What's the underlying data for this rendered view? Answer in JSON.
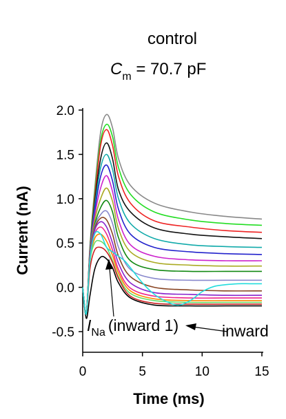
{
  "chart_data": {
    "type": "line",
    "title": "control",
    "subtitle": {
      "symbol": "C",
      "subscript": "m",
      "rest": " = 70.7 pF"
    },
    "xlabel": "Time (ms)",
    "ylabel": "Current (nA)",
    "xlim": [
      0,
      15
    ],
    "ylim": [
      -0.6,
      2.0
    ],
    "xticks": [
      0,
      5,
      10,
      15
    ],
    "yticks": [
      -0.5,
      0.0,
      0.5,
      1.0,
      1.5,
      2.0
    ],
    "xtick_labels": [
      "0",
      "5",
      "10",
      "15"
    ],
    "ytick_labels": [
      "-0.5",
      "0.0",
      "0.5",
      "1.0",
      "1.5",
      "2.0"
    ],
    "grid": false,
    "legend": "none",
    "series": [
      {
        "color": "#888888",
        "x": [
          0,
          0.3,
          0.6,
          1.0,
          1.5,
          2.0,
          2.5,
          3.0,
          4.0,
          6.0,
          9.0,
          12.0,
          15.0
        ],
        "y": [
          0,
          -0.3,
          0.45,
          1.1,
          1.75,
          1.95,
          1.8,
          1.45,
          1.15,
          0.95,
          0.85,
          0.8,
          0.77
        ]
      },
      {
        "color": "#22dd22",
        "x": [
          0,
          0.3,
          0.6,
          1.0,
          1.5,
          2.0,
          2.5,
          3.0,
          4.0,
          6.0,
          9.0,
          12.0,
          15.0
        ],
        "y": [
          0,
          -0.3,
          0.43,
          1.05,
          1.65,
          1.84,
          1.7,
          1.35,
          1.05,
          0.85,
          0.76,
          0.72,
          0.7
        ]
      },
      {
        "color": "#ee2222",
        "x": [
          0,
          0.3,
          0.6,
          1.0,
          1.5,
          2.0,
          2.5,
          3.0,
          4.0,
          6.0,
          9.0,
          12.0,
          15.0
        ],
        "y": [
          0,
          -0.3,
          0.42,
          1.0,
          1.6,
          1.78,
          1.6,
          1.25,
          0.95,
          0.75,
          0.68,
          0.64,
          0.62
        ]
      },
      {
        "color": "#111111",
        "x": [
          0,
          0.3,
          0.6,
          1.0,
          1.5,
          2.0,
          2.5,
          3.0,
          4.0,
          6.0,
          9.0,
          12.0,
          15.0
        ],
        "y": [
          0,
          -0.3,
          0.4,
          0.95,
          1.45,
          1.63,
          1.45,
          1.1,
          0.85,
          0.67,
          0.6,
          0.57,
          0.55
        ]
      },
      {
        "color": "#11aaaa",
        "x": [
          0,
          0.3,
          0.6,
          1.0,
          1.5,
          2.0,
          2.5,
          3.0,
          4.0,
          6.0,
          9.0,
          12.0,
          15.0
        ],
        "y": [
          0,
          -0.3,
          0.4,
          0.9,
          1.35,
          1.5,
          1.33,
          1.0,
          0.72,
          0.55,
          0.48,
          0.46,
          0.45
        ]
      },
      {
        "color": "#2222cc",
        "x": [
          0,
          0.3,
          0.6,
          1.0,
          1.5,
          2.0,
          2.5,
          3.0,
          4.0,
          6.0,
          9.0,
          12.0,
          15.0
        ],
        "y": [
          0,
          -0.3,
          0.38,
          0.85,
          1.25,
          1.38,
          1.2,
          0.88,
          0.6,
          0.45,
          0.4,
          0.38,
          0.37
        ]
      },
      {
        "color": "#cc22cc",
        "x": [
          0,
          0.3,
          0.6,
          1.0,
          1.5,
          2.0,
          2.5,
          3.0,
          4.0,
          6.0,
          9.0,
          12.0,
          15.0
        ],
        "y": [
          0,
          -0.3,
          0.38,
          0.8,
          1.12,
          1.26,
          1.08,
          0.76,
          0.48,
          0.35,
          0.31,
          0.3,
          0.3
        ]
      },
      {
        "color": "#aaaa22",
        "x": [
          0,
          0.3,
          0.6,
          1.0,
          1.5,
          2.0,
          2.5,
          3.0,
          4.0,
          6.0,
          9.0,
          12.0,
          15.0
        ],
        "y": [
          0,
          -0.3,
          0.37,
          0.75,
          1.0,
          1.12,
          0.97,
          0.66,
          0.4,
          0.28,
          0.25,
          0.24,
          0.24
        ]
      },
      {
        "color": "#118811",
        "x": [
          0,
          0.3,
          0.6,
          1.0,
          1.5,
          2.0,
          2.5,
          3.0,
          4.0,
          6.0,
          9.0,
          12.0,
          15.0
        ],
        "y": [
          0,
          -0.3,
          0.36,
          0.7,
          0.9,
          0.98,
          0.85,
          0.56,
          0.3,
          0.2,
          0.18,
          0.18,
          0.18
        ]
      },
      {
        "color": "#8888cc",
        "x": [
          0,
          0.3,
          0.6,
          1.0,
          1.5,
          2.0,
          2.5,
          3.0,
          4.0,
          6.0,
          9.0,
          12.0,
          15.0
        ],
        "y": [
          0,
          -0.3,
          0.35,
          0.68,
          0.82,
          0.86,
          0.72,
          0.45,
          0.2,
          0.1,
          0.08,
          0.08,
          0.08
        ]
      },
      {
        "color": "#884422",
        "x": [
          0,
          0.3,
          0.6,
          1.0,
          1.5,
          2.0,
          2.5,
          3.0,
          4.0,
          6.0,
          9.0,
          12.0,
          15.0
        ],
        "y": [
          0,
          -0.3,
          0.34,
          0.66,
          0.78,
          0.76,
          0.6,
          0.35,
          0.12,
          0.0,
          -0.03,
          -0.04,
          -0.04
        ]
      },
      {
        "color": "#8822cc",
        "x": [
          0,
          0.3,
          0.6,
          1.0,
          1.5,
          2.0,
          2.5,
          3.0,
          4.0,
          6.0,
          9.0,
          12.0,
          15.0
        ],
        "y": [
          0,
          -0.3,
          0.33,
          0.64,
          0.74,
          0.68,
          0.5,
          0.27,
          0.05,
          -0.06,
          -0.08,
          -0.09,
          -0.09
        ]
      },
      {
        "color": "#ee2288",
        "x": [
          0,
          0.3,
          0.6,
          1.0,
          1.5,
          2.0,
          2.5,
          3.0,
          4.0,
          6.0,
          9.0,
          12.0,
          15.0
        ],
        "y": [
          0,
          -0.3,
          0.32,
          0.6,
          0.68,
          0.6,
          0.42,
          0.2,
          -0.01,
          -0.1,
          -0.12,
          -0.12,
          -0.12
        ]
      },
      {
        "color": "#ff8800",
        "x": [
          0,
          0.3,
          0.6,
          1.0,
          1.5,
          2.0,
          2.5,
          3.0,
          4.0,
          6.0,
          9.0,
          12.0,
          15.0
        ],
        "y": [
          0,
          -0.3,
          0.3,
          0.55,
          0.6,
          0.52,
          0.36,
          0.16,
          -0.04,
          -0.13,
          -0.15,
          -0.15,
          -0.15
        ]
      },
      {
        "color": "#66dd66",
        "x": [
          0,
          0.3,
          0.6,
          1.0,
          1.5,
          2.0,
          2.5,
          3.0,
          4.0,
          6.0,
          9.0,
          12.0,
          15.0
        ],
        "y": [
          0,
          -0.3,
          0.28,
          0.5,
          0.52,
          0.45,
          0.3,
          0.12,
          -0.07,
          -0.15,
          -0.17,
          -0.17,
          -0.17
        ]
      },
      {
        "color": "#cc2222",
        "x": [
          0,
          0.3,
          0.6,
          1.0,
          1.5,
          2.0,
          2.5,
          3.0,
          4.0,
          6.0,
          9.0,
          12.0,
          15.0
        ],
        "y": [
          0,
          -0.3,
          0.2,
          0.42,
          0.45,
          0.4,
          0.28,
          0.1,
          -0.1,
          -0.18,
          -0.19,
          -0.19,
          -0.19
        ]
      },
      {
        "color": "#000000",
        "x": [
          0,
          0.3,
          0.6,
          1.0,
          1.5,
          2.0,
          2.5,
          3.0,
          4.0,
          6.0,
          9.0,
          12.0,
          15.0
        ],
        "y": [
          0,
          -0.35,
          -0.1,
          0.2,
          0.34,
          0.32,
          0.22,
          0.05,
          -0.12,
          -0.2,
          -0.21,
          -0.21,
          -0.21
        ]
      },
      {
        "color": "#22dddd",
        "x": [
          0,
          0.3,
          0.6,
          1.0,
          1.5,
          2.0,
          2.5,
          3.0,
          3.5,
          4.0,
          5.0,
          6.0,
          7.0,
          8.0,
          9.0,
          10.0,
          11.0,
          12.0,
          13.0,
          14.0,
          15.0
        ],
        "y": [
          0,
          -0.3,
          0.3,
          0.6,
          0.6,
          0.45,
          0.4,
          0.35,
          0.3,
          0.22,
          0.05,
          -0.08,
          -0.16,
          -0.2,
          -0.15,
          -0.05,
          0.01,
          0.03,
          0.04,
          0.04,
          0.04
        ]
      }
    ],
    "annotations": [
      {
        "symbol": "I",
        "subscript": "Na",
        "text": "(inward 1)",
        "points_to": [
          2.2,
          0.28
        ]
      },
      {
        "text": "inward",
        "points_to": [
          8.8,
          -0.18
        ]
      }
    ]
  }
}
